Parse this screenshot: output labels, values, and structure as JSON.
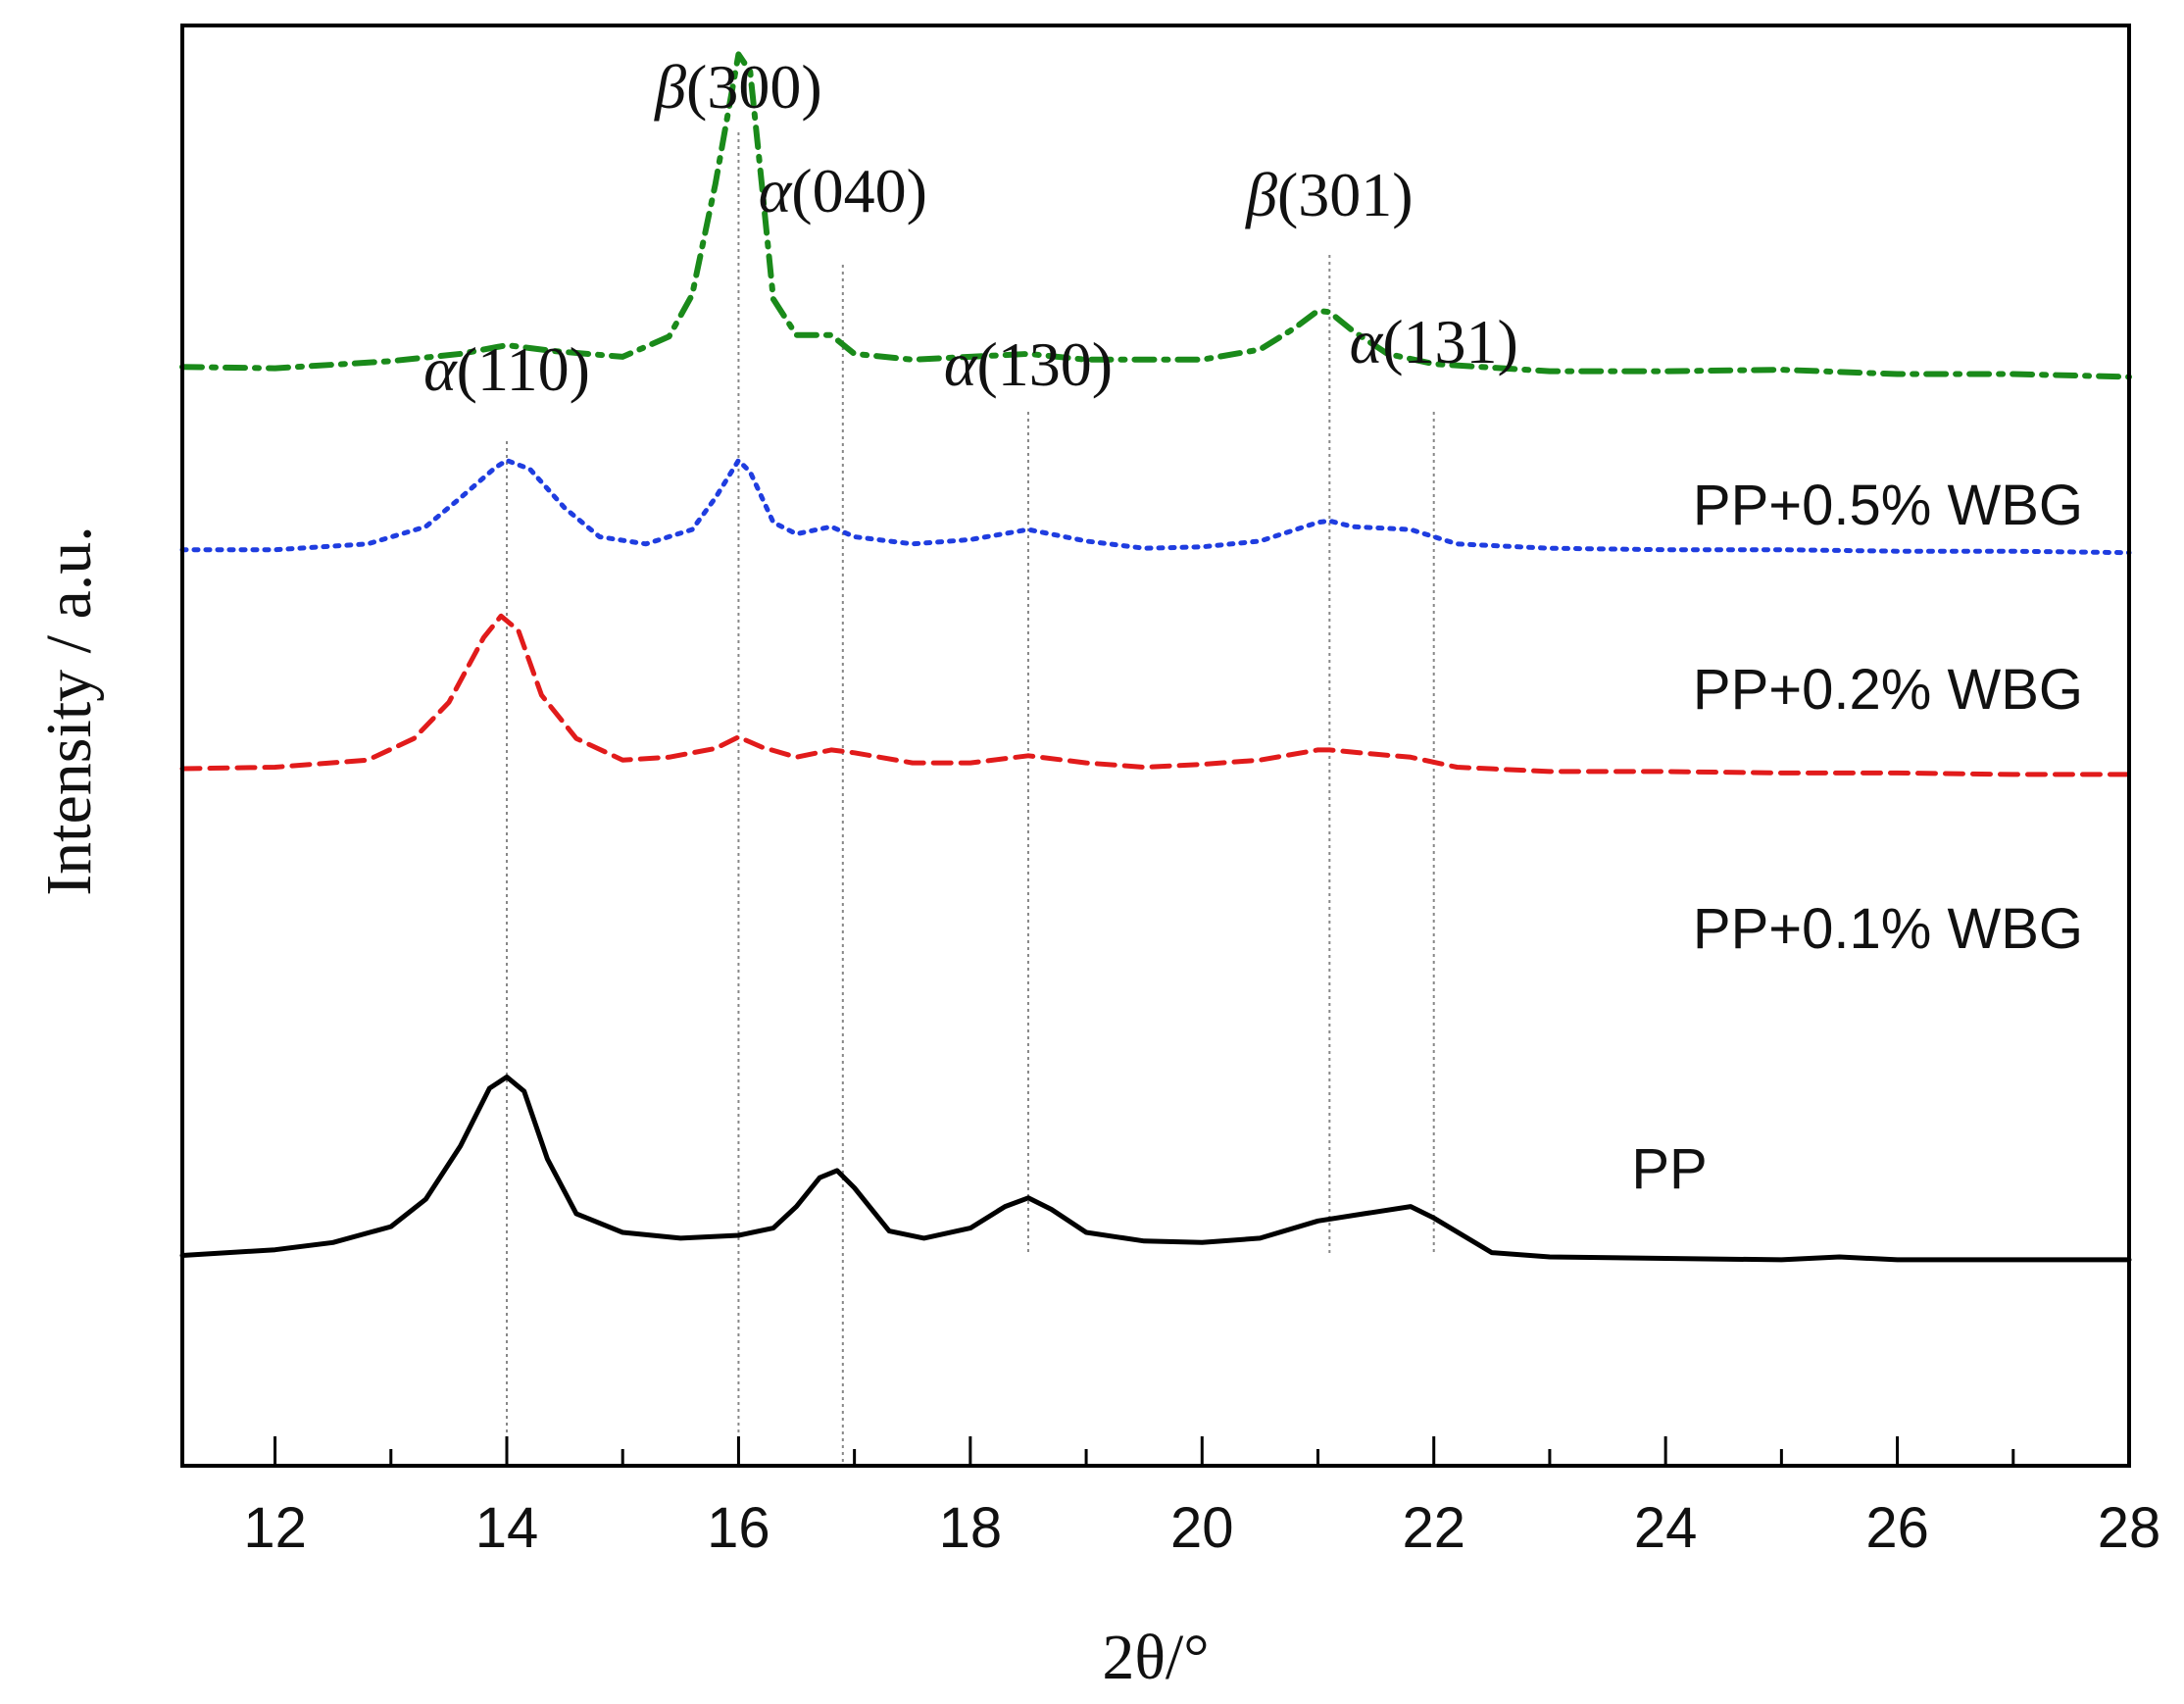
{
  "chart_data": {
    "type": "line",
    "xlabel": "2θ/°",
    "ylabel": "Intensity / a.u.",
    "xlim": [
      11.2,
      28
    ],
    "ylim": [
      0,
      1000
    ],
    "xticks": [
      "12",
      "14",
      "16",
      "18",
      "20",
      "22",
      "24",
      "26",
      "28"
    ],
    "xtick_values": [
      12,
      14,
      16,
      18,
      20,
      22,
      24,
      26,
      28
    ],
    "grid": false,
    "peaks": [
      {
        "label": "α(110)",
        "greek": "α",
        "hkl": "(110)",
        "x": 14.0
      },
      {
        "label": "β(300)",
        "greek": "β",
        "hkl": "(300)",
        "x": 16.0
      },
      {
        "label": "α(040)",
        "greek": "α",
        "hkl": "(040)",
        "x": 16.9
      },
      {
        "label": "α(130)",
        "greek": "α",
        "hkl": "(130)",
        "x": 18.5
      },
      {
        "label": "β(301)",
        "greek": "β",
        "hkl": "(301)",
        "x": 21.1
      },
      {
        "label": "α(131)",
        "greek": "α",
        "hkl": "(131)",
        "x": 22.0
      }
    ],
    "series": [
      {
        "name": "PP+0.5% WBG",
        "color": "#1a8a1a",
        "style": "dashdot",
        "x": [
          11.2,
          12.0,
          13.0,
          13.6,
          14.0,
          14.4,
          15.0,
          15.4,
          15.6,
          15.8,
          16.0,
          16.1,
          16.2,
          16.3,
          16.5,
          16.8,
          17.0,
          17.5,
          18.0,
          18.5,
          19.0,
          20.0,
          20.5,
          20.8,
          21.0,
          21.1,
          21.3,
          21.6,
          22.0,
          23.0,
          24.0,
          25.0,
          26.0,
          27.0,
          28.0
        ],
        "y": [
          763,
          762,
          767,
          772,
          778,
          774,
          770,
          784,
          813,
          890,
          980,
          968,
          890,
          810,
          785,
          785,
          772,
          768,
          770,
          772,
          768,
          768,
          775,
          790,
          802,
          801,
          788,
          772,
          765,
          760,
          760,
          761,
          758,
          758,
          756
        ]
      },
      {
        "name": "PP+0.2% WBG",
        "color": "#1f3de0",
        "style": "dotted",
        "x": [
          11.2,
          12.0,
          12.8,
          13.3,
          13.6,
          13.9,
          14.0,
          14.2,
          14.5,
          14.8,
          15.2,
          15.6,
          15.8,
          16.0,
          16.1,
          16.3,
          16.5,
          16.8,
          17.0,
          17.5,
          18.0,
          18.5,
          19.0,
          19.5,
          20.0,
          20.5,
          21.0,
          21.1,
          21.3,
          21.8,
          22.2,
          23.0,
          24.0,
          25.0,
          26.0,
          27.0,
          28.0
        ],
        "y": [
          636,
          636,
          640,
          652,
          672,
          693,
          698,
          692,
          665,
          645,
          640,
          650,
          672,
          698,
          690,
          655,
          647,
          652,
          645,
          640,
          643,
          650,
          642,
          637,
          638,
          642,
          655,
          656,
          652,
          650,
          640,
          637,
          636,
          636,
          635,
          635,
          634
        ]
      },
      {
        "name": "PP+0.1% WBG",
        "color": "#e11b1b",
        "style": "dashed",
        "x": [
          11.2,
          12.0,
          12.8,
          13.2,
          13.5,
          13.8,
          13.95,
          14.1,
          14.3,
          14.6,
          15.0,
          15.4,
          15.8,
          16.0,
          16.2,
          16.5,
          16.8,
          17.0,
          17.5,
          18.0,
          18.5,
          19.0,
          19.5,
          20.0,
          20.5,
          21.0,
          21.1,
          21.5,
          21.8,
          22.2,
          23.0,
          24.0,
          25.0,
          26.0,
          27.0,
          28.0
        ],
        "y": [
          484,
          485,
          490,
          505,
          530,
          575,
          590,
          580,
          535,
          505,
          490,
          492,
          498,
          506,
          499,
          492,
          497,
          495,
          488,
          488,
          493,
          488,
          485,
          487,
          490,
          497,
          497,
          494,
          492,
          485,
          482,
          482,
          481,
          481,
          480,
          480
        ]
      },
      {
        "name": "PP",
        "color": "#000000",
        "style": "solid",
        "x": [
          11.2,
          12.0,
          12.5,
          13.0,
          13.3,
          13.6,
          13.85,
          14.0,
          14.15,
          14.35,
          14.6,
          15.0,
          15.5,
          16.0,
          16.3,
          16.5,
          16.7,
          16.85,
          17.0,
          17.3,
          17.6,
          18.0,
          18.3,
          18.5,
          18.7,
          19.0,
          19.5,
          20.0,
          20.5,
          21.0,
          21.4,
          21.8,
          22.0,
          22.5,
          23.0,
          24.0,
          25.0,
          25.5,
          26.0,
          27.0,
          28.0
        ],
        "y": [
          146,
          150,
          155,
          166,
          185,
          222,
          262,
          270,
          260,
          213,
          175,
          162,
          158,
          160,
          165,
          180,
          200,
          205,
          193,
          163,
          158,
          165,
          180,
          186,
          178,
          162,
          156,
          155,
          158,
          170,
          175,
          180,
          172,
          148,
          145,
          144,
          143,
          145,
          143,
          143,
          143
        ]
      }
    ]
  }
}
